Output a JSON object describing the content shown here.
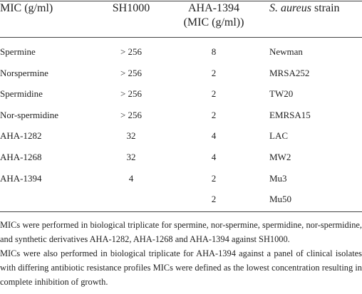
{
  "table": {
    "header": [
      "MIC (g/ml)",
      "SH1000",
      [
        "AHA-1394",
        "(MIC (g/ml))"
      ],
      [
        "S. aureus",
        "strain"
      ]
    ],
    "rows": [
      [
        "Spermine",
        "> 256",
        "8",
        "Newman"
      ],
      [
        "Norspermine",
        "> 256",
        "2",
        "MRSA252"
      ],
      [
        "Spermidine",
        "> 256",
        "2",
        "TW20"
      ],
      [
        "Nor-spermidine",
        "> 256",
        "2",
        "EMRSA15"
      ],
      [
        "AHA-1282",
        "32",
        "4",
        "LAC"
      ],
      [
        "AHA-1268",
        "32",
        "4",
        "MW2"
      ],
      [
        "AHA-1394",
        "4",
        "2",
        "Mu3"
      ],
      [
        null,
        null,
        "2",
        "Mu50"
      ]
    ]
  },
  "notes": [
    "MICs were performed in biological triplicate for spermine, nor-spermine, spermidine, nor-spermidine, and synthetic derivatives AHA-1282, AHA-1268 and AHA-1394 against SH1000.",
    "MICs were also performed in biological triplicate for AHA-1394 against a panel of clinical isolates with differing antibiotic resistance profiles MICs were defined as the lowest concentration resulting in complete inhibition of growth."
  ]
}
